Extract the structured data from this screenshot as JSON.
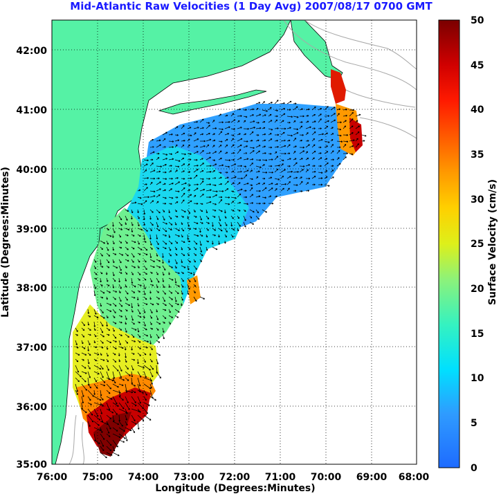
{
  "title": "Mid-Atlantic Raw Velocities (1 Day Avg) 2007/08/17 0700 GMT",
  "xlabel": "Longitude (Degrees:Minutes)",
  "ylabel": "Latitude (Degrees:Minutes)",
  "x_ticks": [
    "76:00",
    "75:00",
    "74:00",
    "73:00",
    "72:00",
    "71:00",
    "70:00",
    "69:00",
    "68:00"
  ],
  "y_ticks": [
    "42:00",
    "41:00",
    "40:00",
    "39:00",
    "38:00",
    "37:00",
    "36:00",
    "35:00"
  ],
  "colorbar": {
    "label": "Surface Velocity (cm/s)",
    "ticks": [
      "50",
      "45",
      "40",
      "35",
      "30",
      "25",
      "20",
      "15",
      "10",
      "5",
      "0"
    ],
    "range": [
      0,
      50
    ]
  },
  "colors": {
    "land": "#55f2a5",
    "coast_outline": "#000000",
    "bathymetry": "#a8a8a8",
    "grid": "#000000",
    "title": "#1a1aff"
  }
}
